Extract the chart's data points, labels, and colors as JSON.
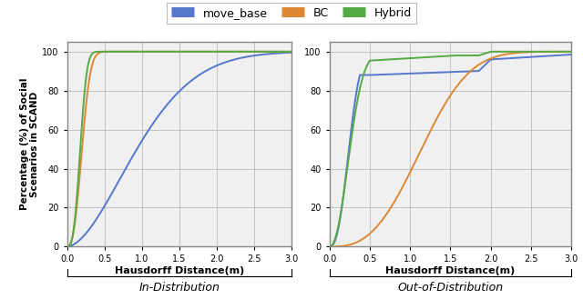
{
  "colors": {
    "move_base": "#5577cc",
    "BC": "#dd8833",
    "Hybrid": "#55aa44"
  },
  "legend_labels": [
    "move_base",
    "BC",
    "Hybrid"
  ],
  "xlabel": "Hausdorff Distance(m)",
  "ylabel": "Percentage (%) of Social\nScenarios in SCAND",
  "xlim": [
    0.0,
    3.0
  ],
  "ylim": [
    0,
    105
  ],
  "yticks": [
    0,
    20,
    40,
    60,
    80,
    100
  ],
  "xticks": [
    0.0,
    0.5,
    1.0,
    1.5,
    2.0,
    2.5,
    3.0
  ],
  "label_in": "In-Distribution",
  "label_out": "Out-of-Distribution",
  "grid_color": "#bbbbbb",
  "bg_color": "#f0f0f0",
  "line_width": 1.4
}
